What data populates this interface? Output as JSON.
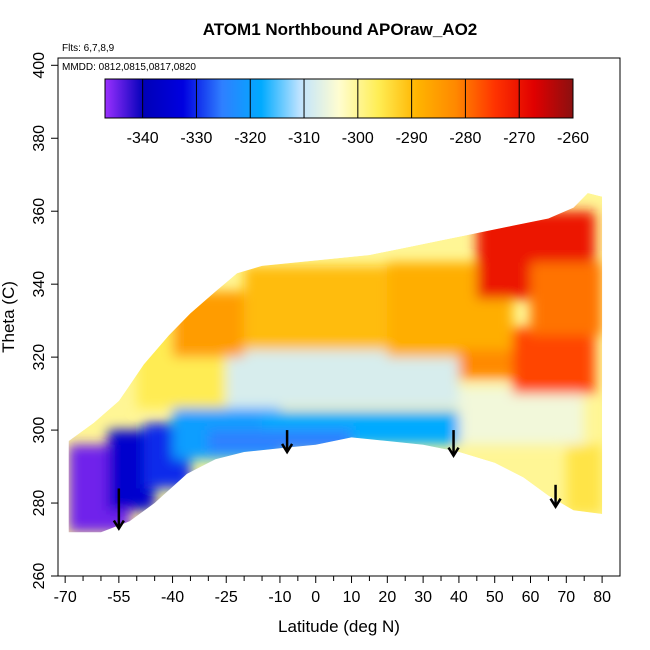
{
  "chart_data": {
    "type": "heatmap",
    "title": "ATOM1 Northbound APOraw_AO2",
    "annotations": [
      "Flts: 6,7,8,9",
      "MMDD: 0812,0815,0817,0820"
    ],
    "xlabel": "Latitude (deg N)",
    "ylabel": "Theta (C)",
    "xlim": [
      -72,
      85
    ],
    "ylim": [
      260,
      402
    ],
    "x_ticks": [
      -70,
      -55,
      -40,
      -25,
      -10,
      0,
      10,
      20,
      30,
      40,
      50,
      60,
      70,
      80
    ],
    "x_tick_labels": [
      "-70",
      "-55",
      "-40",
      "-25",
      "-10",
      "0",
      "10",
      "20",
      "30",
      "40",
      "50",
      "60",
      "70",
      "80"
    ],
    "x_minor_ticks": [
      -65,
      -60,
      -50,
      -45,
      -35,
      -30,
      -20,
      -15,
      -5,
      5,
      15,
      25,
      35,
      45,
      55,
      65,
      75
    ],
    "y_ticks": [
      260,
      280,
      300,
      320,
      340,
      360,
      380,
      400
    ],
    "y_tick_labels": [
      "260",
      "280",
      "300",
      "320",
      "340",
      "360",
      "380",
      "400"
    ],
    "colorbar": {
      "min": -347,
      "max": -260,
      "ticks": [
        -340,
        -330,
        -320,
        -310,
        -300,
        -290,
        -280,
        -270,
        -260
      ],
      "tick_labels": [
        "-340",
        "-330",
        "-320",
        "-310",
        "-300",
        "-290",
        "-280",
        "-270",
        "-260"
      ],
      "colors": [
        "#9b30ff",
        "#0000b8",
        "#0000e0",
        "#2f7fff",
        "#00aaff",
        "#bfe3ff",
        "#fffdd0",
        "#ffee55",
        "#ffb400",
        "#ff8800",
        "#ff3300",
        "#e00000",
        "#8b1010"
      ]
    },
    "data_region": {
      "upper_boundary": [
        [
          -69,
          297
        ],
        [
          -62,
          302
        ],
        [
          -55,
          308
        ],
        [
          -48,
          318
        ],
        [
          -41,
          326
        ],
        [
          -35,
          332
        ],
        [
          -28,
          338
        ],
        [
          -22,
          343
        ],
        [
          -15,
          345
        ],
        [
          -5,
          346
        ],
        [
          5,
          347
        ],
        [
          15,
          348
        ],
        [
          25,
          350
        ],
        [
          35,
          352
        ],
        [
          45,
          354
        ],
        [
          55,
          356
        ],
        [
          65,
          358
        ],
        [
          72,
          361
        ],
        [
          76,
          365
        ],
        [
          80,
          364
        ]
      ],
      "lower_boundary": [
        [
          -69,
          272
        ],
        [
          -60,
          272
        ],
        [
          -52,
          275
        ],
        [
          -45,
          280
        ],
        [
          -36,
          288
        ],
        [
          -28,
          292
        ],
        [
          -20,
          294
        ],
        [
          -10,
          295
        ],
        [
          0,
          296
        ],
        [
          10,
          298
        ],
        [
          20,
          297
        ],
        [
          30,
          296
        ],
        [
          40,
          294
        ],
        [
          50,
          291
        ],
        [
          58,
          287
        ],
        [
          65,
          282
        ],
        [
          72,
          278
        ],
        [
          80,
          277
        ]
      ]
    },
    "anomaly_regions": [
      {
        "value": -345,
        "x": [
          -69,
          -52
        ],
        "y": [
          272,
          296
        ]
      },
      {
        "value": -336,
        "x": [
          -58,
          -45
        ],
        "y": [
          278,
          300
        ]
      },
      {
        "value": -330,
        "x": [
          -48,
          -35
        ],
        "y": [
          284,
          302
        ]
      },
      {
        "value": -320,
        "x": [
          -40,
          -10
        ],
        "y": [
          292,
          306
        ]
      },
      {
        "value": -318,
        "x": [
          -15,
          40
        ],
        "y": [
          296,
          305
        ]
      },
      {
        "value": -325,
        "x": [
          -30,
          10
        ],
        "y": [
          294,
          300
        ]
      },
      {
        "value": -308,
        "x": [
          -35,
          40
        ],
        "y": [
          306,
          322
        ]
      },
      {
        "value": -305,
        "x": [
          40,
          75
        ],
        "y": [
          296,
          312
        ]
      },
      {
        "value": -296,
        "x": [
          -50,
          -25
        ],
        "y": [
          306,
          330
        ]
      },
      {
        "value": -285,
        "x": [
          -40,
          -20
        ],
        "y": [
          320,
          338
        ]
      },
      {
        "value": -290,
        "x": [
          -20,
          20
        ],
        "y": [
          322,
          345
        ]
      },
      {
        "value": -288,
        "x": [
          20,
          55
        ],
        "y": [
          320,
          346
        ]
      },
      {
        "value": -282,
        "x": [
          40,
          60
        ],
        "y": [
          314,
          322
        ]
      },
      {
        "value": -276,
        "x": [
          55,
          78
        ],
        "y": [
          310,
          328
        ]
      },
      {
        "value": -270,
        "x": [
          45,
          78
        ],
        "y": [
          336,
          360
        ]
      },
      {
        "value": -280,
        "x": [
          60,
          80
        ],
        "y": [
          326,
          346
        ]
      },
      {
        "value": -295,
        "x": [
          70,
          80
        ],
        "y": [
          277,
          296
        ]
      }
    ],
    "arrows": [
      {
        "x": -55,
        "y_top": 284,
        "y_bottom": 273
      },
      {
        "x": -8,
        "y_top": 300,
        "y_bottom": 294
      },
      {
        "x": 38.5,
        "y_top": 300,
        "y_bottom": 293
      },
      {
        "x": 67,
        "y_top": 285,
        "y_bottom": 279
      }
    ]
  }
}
